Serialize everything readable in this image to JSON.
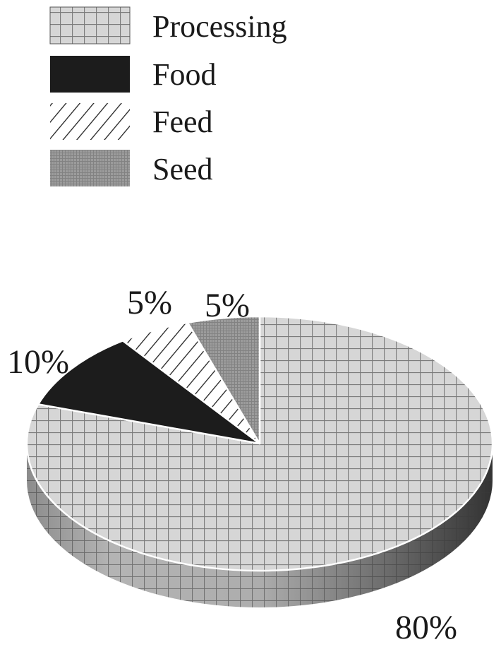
{
  "chart_data": {
    "type": "pie",
    "style": "3d",
    "legend_position": "top-left",
    "categories": [
      "Processing",
      "Food",
      "Feed",
      "Seed"
    ],
    "values": [
      80,
      10,
      5,
      5
    ],
    "labels": [
      "80%",
      "10%",
      "5%",
      "5%"
    ],
    "series": [
      {
        "name": "Processing",
        "value": 80,
        "label": "80%",
        "fill": "grid",
        "color": "#d4d4d4"
      },
      {
        "name": "Food",
        "value": 10,
        "label": "10%",
        "fill": "solid",
        "color": "#1c1c1c"
      },
      {
        "name": "Feed",
        "value": 5,
        "label": "5%",
        "fill": "diagonal-hatch",
        "color": "#ffffff"
      },
      {
        "name": "Seed",
        "value": 5,
        "label": "5%",
        "fill": "fine-dots",
        "color": "#9a9a9a"
      }
    ]
  }
}
